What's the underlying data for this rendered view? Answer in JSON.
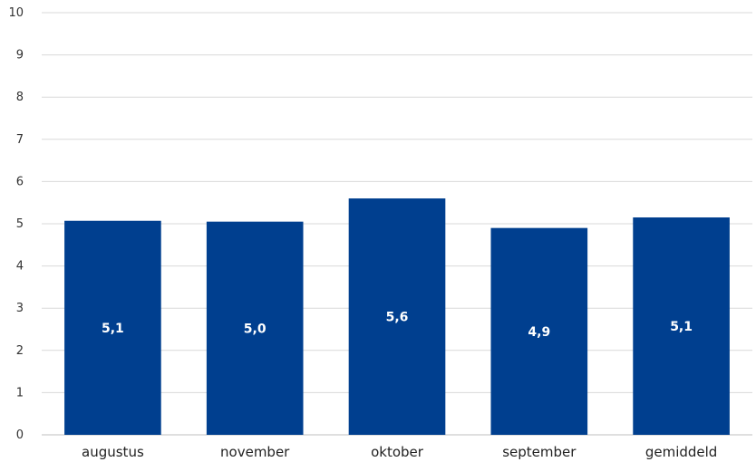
{
  "chart_data": {
    "type": "bar",
    "categories": [
      "augustus",
      "november",
      "oktober",
      "september",
      "gemiddeld"
    ],
    "values": [
      5.07,
      5.05,
      5.6,
      4.9,
      5.15
    ],
    "data_labels": [
      "5,1",
      "5,0",
      "5,6",
      "4,9",
      "5,1"
    ],
    "y_ticks": [
      "0",
      "1",
      "2",
      "3",
      "4",
      "5",
      "6",
      "7",
      "8",
      "9",
      "10"
    ],
    "ylim": [
      0,
      10
    ],
    "grid": true,
    "legend": "none",
    "bar_color": "#003f8f"
  }
}
